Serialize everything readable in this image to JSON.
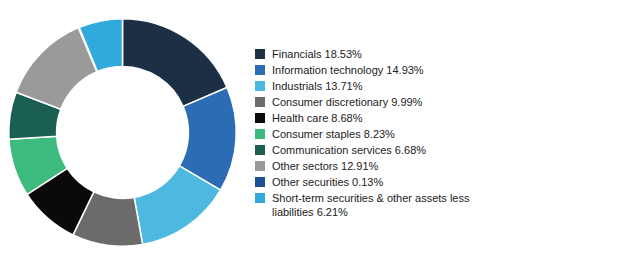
{
  "chart_data": {
    "type": "doughnut",
    "categories": [
      "Financials 18.53%",
      "Information technology 14.93%",
      "Industrials 13.71%",
      "Consumer discretionary 9.99%",
      "Health care 8.68%",
      "Consumer staples 8.23%",
      "Communication services 6.68%",
      "Other sectors 12.91%",
      "Other securities 0.13%",
      "Short-term securities & other assets less\nliabilities 6.21%"
    ],
    "values": [
      18.53,
      14.93,
      13.71,
      9.99,
      8.68,
      8.23,
      6.68,
      12.91,
      0.13,
      6.21
    ],
    "colors": [
      "#1b2f45",
      "#2b6cb5",
      "#4db8e0",
      "#6b6b6b",
      "#0a0a0a",
      "#3dba7e",
      "#1a5f52",
      "#9a9a9a",
      "#1f5096",
      "#30aadc"
    ],
    "legend": "right"
  }
}
